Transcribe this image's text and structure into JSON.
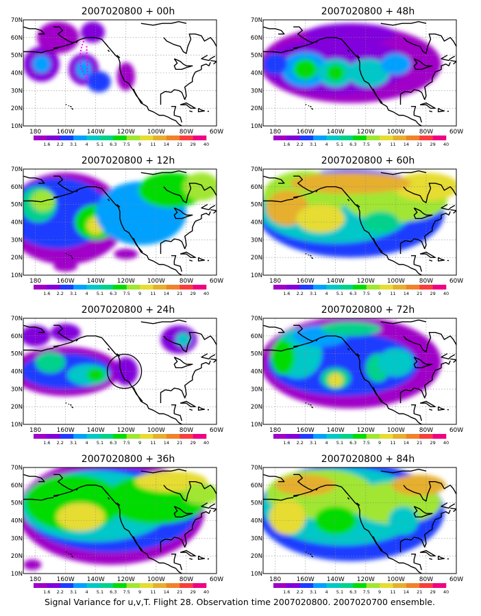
{
  "caption": "Signal Variance for u,v,T. Flight 28. Observation time 2007020800. 2007020700 ensemble.",
  "color_scale": {
    "labels": [
      "1.6",
      "2.2",
      "3.1",
      "4",
      "5.1",
      "6.3",
      "7.5",
      "9",
      "11",
      "14",
      "21",
      "29",
      "40"
    ],
    "colors": [
      "#a000c8",
      "#8200dc",
      "#1e3cff",
      "#00a0ff",
      "#00c8c8",
      "#00d28c",
      "#00dc00",
      "#a0e632",
      "#e6dc32",
      "#e6af2d",
      "#f08228",
      "#fa3c3c",
      "#f00082"
    ]
  },
  "axes": {
    "lat_labels": [
      "70N",
      "60N",
      "50N",
      "40N",
      "30N",
      "20N",
      "10N"
    ],
    "lon_labels": [
      "180",
      "160W",
      "140W",
      "120W",
      "100W",
      "80W",
      "60W"
    ]
  },
  "panels": [
    {
      "title": "2007020800 + 00h",
      "level": 0
    },
    {
      "title": "2007020800 + 48h",
      "level": 4
    },
    {
      "title": "2007020800 + 12h",
      "level": 1
    },
    {
      "title": "2007020800 + 60h",
      "level": 5
    },
    {
      "title": "2007020800 + 24h",
      "level": 2
    },
    {
      "title": "2007020800 + 72h",
      "level": 6
    },
    {
      "title": "2007020800 + 36h",
      "level": 3
    },
    {
      "title": "2007020800 + 84h",
      "level": 7
    }
  ]
}
